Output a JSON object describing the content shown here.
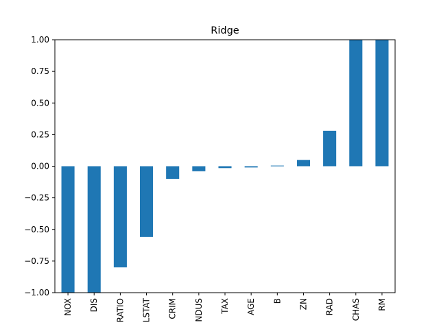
{
  "chart_data": {
    "type": "bar",
    "title": "Ridge",
    "xlabel": "",
    "ylabel": "",
    "categories": [
      "NOX",
      "DIS",
      "RATIO",
      "LSTAT",
      "CRIM",
      "NDUS",
      "TAX",
      "AGE",
      "B",
      "ZN",
      "RAD",
      "CHAS",
      "RM"
    ],
    "values": [
      -1.0,
      -1.0,
      -0.8,
      -0.56,
      -0.1,
      -0.04,
      -0.015,
      -0.01,
      0.005,
      0.05,
      0.28,
      1.0,
      1.0
    ],
    "ylim": [
      -1.0,
      1.0
    ],
    "yticks": [
      "1.00",
      "0.75",
      "0.50",
      "0.25",
      "0.00",
      "−0.25",
      "−0.50",
      "−0.75",
      "−1.00"
    ],
    "ytick_values": [
      1.0,
      0.75,
      0.5,
      0.25,
      0.0,
      -0.25,
      -0.5,
      -0.75,
      -1.0
    ],
    "bar_color": "#1f77b4",
    "grid": false,
    "legend": "none"
  }
}
